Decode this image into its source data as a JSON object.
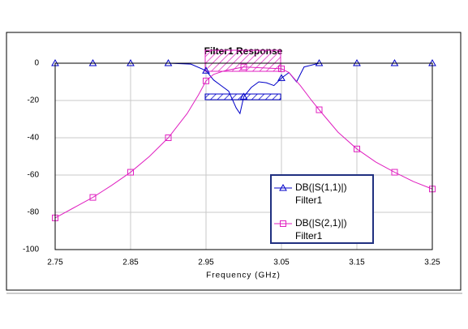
{
  "chart_data": {
    "type": "line",
    "title": "Filter1 Response",
    "x_label": "Frequency (GHz)",
    "xlim": [
      2.75,
      3.25
    ],
    "xticks": [
      2.75,
      2.85,
      2.95,
      3.05,
      3.15,
      3.25
    ],
    "ylim": [
      -100,
      0
    ],
    "yticks": [
      0,
      -20,
      -40,
      -60,
      -80,
      -100
    ],
    "grid": true,
    "series": [
      {
        "name": "DB(|S(1,1)|)",
        "document": "Filter1",
        "color": "#0000c8",
        "marker": "triangle",
        "x": [
          2.75,
          2.8,
          2.85,
          2.9,
          2.93,
          2.95,
          2.96,
          2.97,
          2.98,
          2.99,
          2.995,
          3.0,
          3.01,
          3.02,
          3.03,
          3.04,
          3.05,
          3.06,
          3.07,
          3.08,
          3.1,
          3.15,
          3.2,
          3.25
        ],
        "values": [
          0,
          0,
          0,
          0,
          -0.5,
          -4,
          -9,
          -12,
          -15,
          -24,
          -27,
          -18,
          -13,
          -10,
          -10.5,
          -12,
          -8,
          -5,
          -10,
          -2,
          0,
          0,
          0,
          0
        ]
      },
      {
        "name": "DB(|S(2,1)|)",
        "document": "Filter1",
        "color": "#e020c0",
        "marker": "square",
        "x": [
          2.75,
          2.775,
          2.8,
          2.825,
          2.85,
          2.875,
          2.9,
          2.925,
          2.94,
          2.95,
          2.96,
          2.975,
          3.0,
          3.025,
          3.05,
          3.06,
          3.075,
          3.09,
          3.1,
          3.125,
          3.15,
          3.175,
          3.2,
          3.225,
          3.25
        ],
        "values": [
          -83,
          -77.5,
          -72,
          -65.5,
          -58.5,
          -50,
          -40,
          -27,
          -17,
          -9.5,
          -6,
          -4,
          -2,
          -2.5,
          -3,
          -5,
          -12,
          -20,
          -25,
          -37,
          -46,
          -53,
          -58.5,
          -63.5,
          -67.5
        ]
      }
    ]
  }
}
